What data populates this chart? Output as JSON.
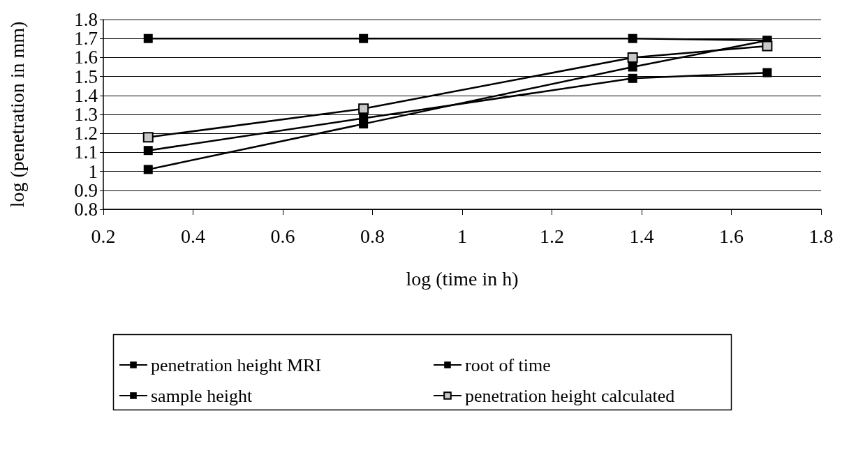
{
  "chart_data": {
    "type": "line",
    "xlabel": "log (time in h)",
    "ylabel": "log (penetration in mm)",
    "x": [
      0.3,
      0.78,
      1.38,
      1.68
    ],
    "series": [
      {
        "name": "penetration height MRI",
        "color": "#000000",
        "values": [
          1.11,
          1.28,
          1.49,
          1.52
        ]
      },
      {
        "name": "root of time",
        "color": "#000000",
        "values": [
          1.01,
          1.25,
          1.55,
          1.69
        ]
      },
      {
        "name": "sample height",
        "color": "#000000",
        "values": [
          1.7,
          1.7,
          1.7,
          1.69
        ]
      },
      {
        "name": "penetration height calculated",
        "color": "#000000",
        "values": [
          1.18,
          1.33,
          1.6,
          1.66
        ]
      }
    ],
    "xlim": [
      0.2,
      1.8
    ],
    "xticks": [
      0.2,
      0.4,
      0.6,
      0.8,
      1,
      1.2,
      1.4,
      1.6,
      1.8
    ],
    "ylim": [
      0.8,
      1.8
    ],
    "yticks": [
      0.8,
      0.9,
      1,
      1.1,
      1.2,
      1.3,
      1.4,
      1.5,
      1.6,
      1.7,
      1.8
    ],
    "grid": "y",
    "legend": "bottom",
    "marker": "square",
    "line_style": "solid"
  }
}
